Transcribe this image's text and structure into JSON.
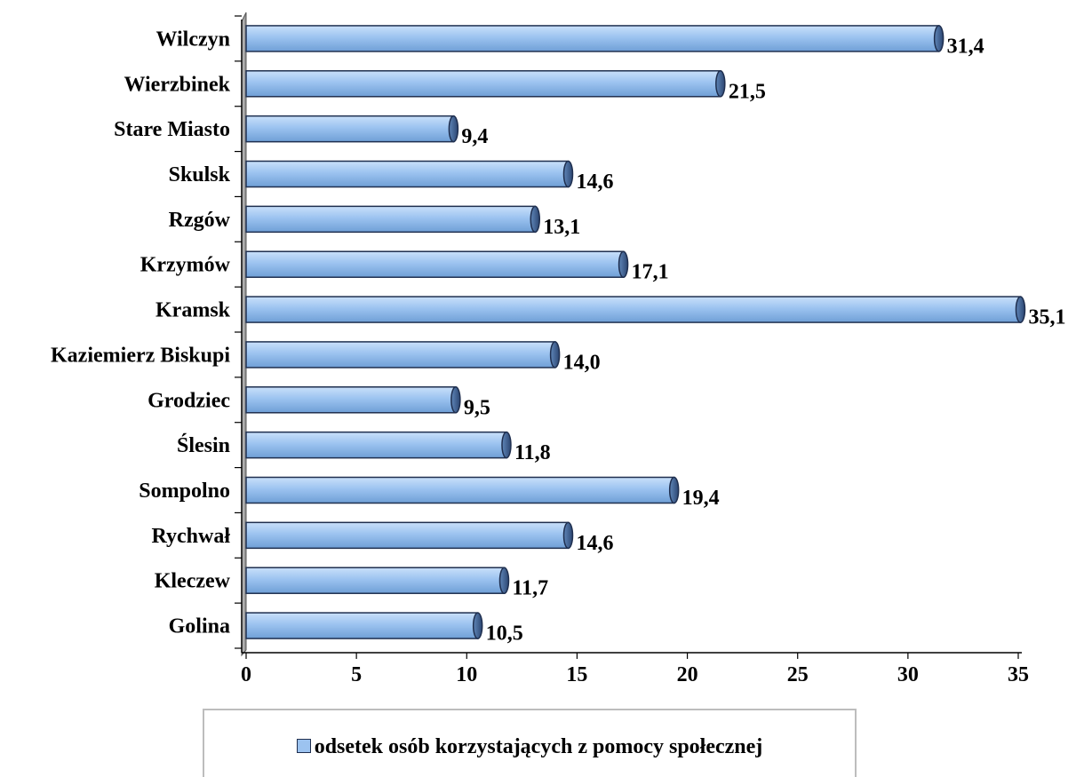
{
  "chart_data": {
    "type": "bar",
    "orientation": "horizontal",
    "categories": [
      "Wilczyn",
      "Wierzbinek",
      "Stare Miasto",
      "Skulsk",
      "Rzgów",
      "Krzymów",
      "Kramsk",
      "Kaziemierz Biskupi",
      "Grodziec",
      "Ślesin",
      "Sompolno",
      "Rychwał",
      "Kleczew",
      "Golina"
    ],
    "series": [
      {
        "name": "odsetek osób korzystających z pomocy społecznej",
        "values": [
          31.4,
          21.5,
          9.4,
          14.6,
          13.1,
          17.1,
          35.1,
          14.0,
          9.5,
          11.8,
          19.4,
          14.6,
          11.7,
          10.5
        ]
      }
    ],
    "value_labels": [
      "31,4",
      "21,5",
      "9,4",
      "14,6",
      "13,1",
      "17,1",
      "35,1",
      "14,0",
      "9,5",
      "11,8",
      "19,4",
      "14,6",
      "11,7",
      "10,5"
    ],
    "x_ticks": [
      "0",
      "5",
      "10",
      "15",
      "20",
      "25",
      "30",
      "35"
    ],
    "xlim": [
      0,
      35
    ],
    "title": "",
    "xlabel": "",
    "ylabel": "",
    "grid": false,
    "legend_position": "bottom",
    "colors": {
      "bar": "#9cc3f0",
      "bar_edge": "#1f2f4f",
      "axis": "#000000"
    }
  }
}
